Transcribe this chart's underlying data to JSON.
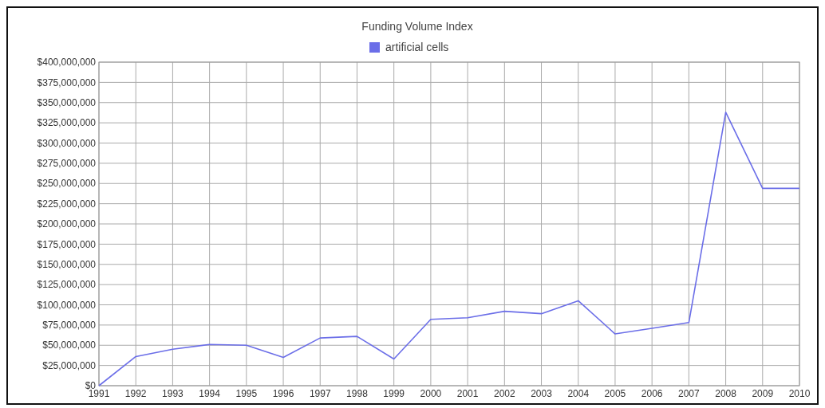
{
  "chart_data": {
    "type": "line",
    "title": "Funding Volume Index",
    "categories": [
      "1991",
      "1992",
      "1993",
      "1994",
      "1995",
      "1996",
      "1997",
      "1998",
      "1999",
      "2000",
      "2001",
      "2002",
      "2003",
      "2004",
      "2005",
      "2006",
      "2007",
      "2008",
      "2009",
      "2010"
    ],
    "series": [
      {
        "name": "artificial cells",
        "color": "#6b6ee8",
        "values": [
          0,
          36000000,
          45000000,
          51000000,
          50000000,
          35000000,
          59000000,
          61000000,
          33000000,
          82000000,
          84000000,
          92000000,
          89000000,
          105000000,
          64000000,
          71000000,
          78000000,
          338000000,
          244000000,
          244000000
        ]
      }
    ],
    "ylim": [
      0,
      400000000
    ],
    "yticks": [
      {
        "value": 0,
        "label": "$0"
      },
      {
        "value": 25000000,
        "label": "$25,000,000"
      },
      {
        "value": 50000000,
        "label": "$50,000,000"
      },
      {
        "value": 75000000,
        "label": "$75,000,000"
      },
      {
        "value": 100000000,
        "label": "$100,000,000"
      },
      {
        "value": 125000000,
        "label": "$125,000,000"
      },
      {
        "value": 150000000,
        "label": "$150,000,000"
      },
      {
        "value": 175000000,
        "label": "$175,000,000"
      },
      {
        "value": 200000000,
        "label": "$200,000,000"
      },
      {
        "value": 225000000,
        "label": "$225,000,000"
      },
      {
        "value": 250000000,
        "label": "$250,000,000"
      },
      {
        "value": 275000000,
        "label": "$275,000,000"
      },
      {
        "value": 300000000,
        "label": "$300,000,000"
      },
      {
        "value": 325000000,
        "label": "$325,000,000"
      },
      {
        "value": 350000000,
        "label": "$350,000,000"
      },
      {
        "value": 375000000,
        "label": "$375,000,000"
      },
      {
        "value": 400000000,
        "label": "$400,000,000"
      }
    ],
    "grid": true,
    "legend": "top",
    "marker": "none",
    "line_style": "solid"
  }
}
